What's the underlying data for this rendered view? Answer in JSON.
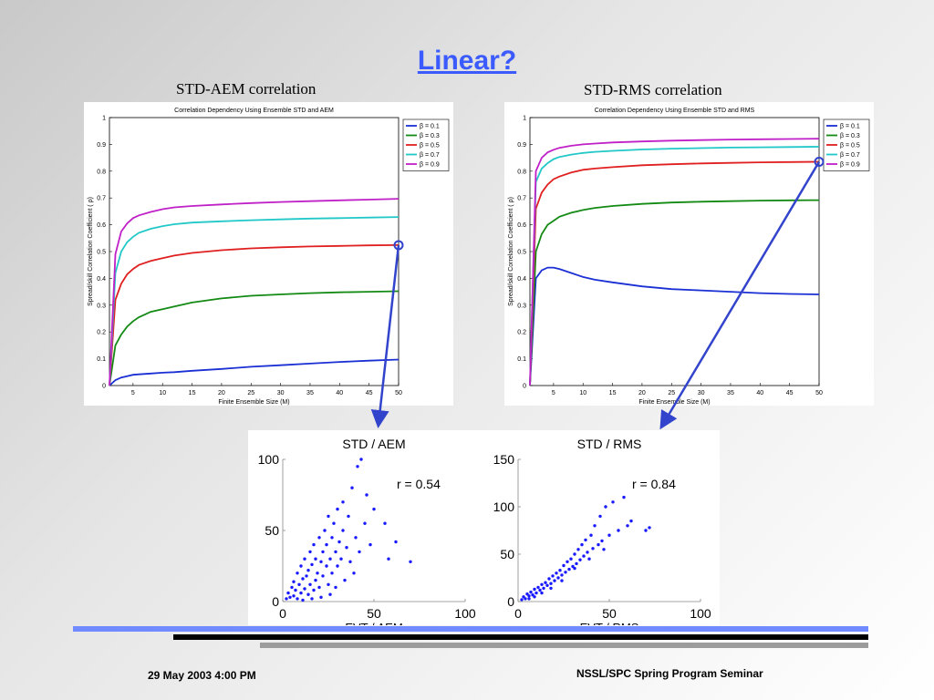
{
  "slide": {
    "title": "Linear?",
    "footer_left": "29 May 2003 4:00 PM",
    "footer_right": "NSSL/SPC Spring Program Seminar",
    "colors": {
      "title": "#3b5bff",
      "accent_bar": "#6f8bff",
      "arrow": "#3344cc"
    }
  },
  "captions": {
    "left": "STD-AEM correlation",
    "right": "STD-RMS correlation"
  },
  "chart_data": [
    {
      "type": "line",
      "id": "aem",
      "title": "Correlation Dependency Using Ensemble STD and AEM",
      "xlabel": "Finite Ensemble Size (M)",
      "ylabel": "Spread/skill Correlation Coefficient ( ρ)",
      "xlim": [
        1,
        50
      ],
      "ylim": [
        0,
        1
      ],
      "xticks": [
        5,
        10,
        15,
        20,
        25,
        30,
        35,
        40,
        45,
        50
      ],
      "yticks": [
        0,
        0.1,
        0.2,
        0.3,
        0.4,
        0.5,
        0.6,
        0.7,
        0.8,
        0.9,
        1
      ],
      "legend_position": "top-right",
      "x": [
        1,
        2,
        3,
        4,
        5,
        6,
        8,
        10,
        12,
        15,
        20,
        25,
        30,
        35,
        40,
        45,
        50
      ],
      "series": [
        {
          "name": "β = 0.1",
          "color": "#1a2fd4",
          "values": [
            0.0,
            0.02,
            0.03,
            0.035,
            0.04,
            0.042,
            0.045,
            0.048,
            0.05,
            0.055,
            0.062,
            0.07,
            0.076,
            0.082,
            0.088,
            0.093,
            0.097
          ]
        },
        {
          "name": "β = 0.3",
          "color": "#138a13",
          "values": [
            0.0,
            0.15,
            0.19,
            0.22,
            0.24,
            0.255,
            0.275,
            0.285,
            0.295,
            0.31,
            0.325,
            0.335,
            0.34,
            0.345,
            0.348,
            0.35,
            0.352
          ]
        },
        {
          "name": "β = 0.5",
          "color": "#e02020",
          "values": [
            0.0,
            0.32,
            0.38,
            0.415,
            0.435,
            0.45,
            0.465,
            0.475,
            0.485,
            0.495,
            0.505,
            0.512,
            0.516,
            0.519,
            0.521,
            0.523,
            0.524
          ]
        },
        {
          "name": "β = 0.7",
          "color": "#22c8c8",
          "values": [
            0.0,
            0.42,
            0.5,
            0.535,
            0.555,
            0.57,
            0.585,
            0.595,
            0.602,
            0.608,
            0.613,
            0.617,
            0.62,
            0.623,
            0.625,
            0.627,
            0.629
          ]
        },
        {
          "name": "β = 0.9",
          "color": "#c020c8",
          "values": [
            0.0,
            0.49,
            0.575,
            0.605,
            0.625,
            0.635,
            0.648,
            0.658,
            0.665,
            0.67,
            0.676,
            0.681,
            0.685,
            0.688,
            0.691,
            0.694,
            0.697
          ]
        }
      ]
    },
    {
      "type": "line",
      "id": "rms",
      "title": "Correlation Dependency Using Ensemble STD and RMS",
      "xlabel": "Finite Ensemble Size (M)",
      "ylabel": "Spread/skill Correlation Coefficient ( ρ)",
      "xlim": [
        1,
        50
      ],
      "ylim": [
        0,
        1
      ],
      "xticks": [
        5,
        10,
        15,
        20,
        25,
        30,
        35,
        40,
        45,
        50
      ],
      "yticks": [
        0,
        0.1,
        0.2,
        0.3,
        0.4,
        0.5,
        0.6,
        0.7,
        0.8,
        0.9,
        1
      ],
      "legend_position": "top-right",
      "x": [
        1,
        2,
        3,
        4,
        5,
        6,
        8,
        10,
        12,
        15,
        20,
        25,
        30,
        35,
        40,
        45,
        50
      ],
      "series": [
        {
          "name": "β = 0.1",
          "color": "#1a2fd4",
          "values": [
            0.0,
            0.4,
            0.43,
            0.44,
            0.44,
            0.435,
            0.42,
            0.405,
            0.395,
            0.385,
            0.37,
            0.36,
            0.355,
            0.35,
            0.345,
            0.342,
            0.34
          ]
        },
        {
          "name": "β = 0.3",
          "color": "#138a13",
          "values": [
            0.0,
            0.5,
            0.565,
            0.6,
            0.615,
            0.63,
            0.645,
            0.655,
            0.663,
            0.67,
            0.678,
            0.683,
            0.686,
            0.688,
            0.69,
            0.691,
            0.692
          ]
        },
        {
          "name": "β = 0.5",
          "color": "#e02020",
          "values": [
            0.0,
            0.66,
            0.72,
            0.75,
            0.77,
            0.78,
            0.795,
            0.805,
            0.81,
            0.815,
            0.822,
            0.826,
            0.829,
            0.831,
            0.833,
            0.834,
            0.835
          ]
        },
        {
          "name": "β = 0.7",
          "color": "#22c8c8",
          "values": [
            0.0,
            0.76,
            0.81,
            0.83,
            0.845,
            0.853,
            0.862,
            0.868,
            0.872,
            0.876,
            0.881,
            0.884,
            0.886,
            0.888,
            0.889,
            0.89,
            0.891
          ]
        },
        {
          "name": "β = 0.9",
          "color": "#c020c8",
          "values": [
            0.0,
            0.8,
            0.85,
            0.87,
            0.88,
            0.887,
            0.895,
            0.9,
            0.903,
            0.907,
            0.911,
            0.914,
            0.916,
            0.918,
            0.919,
            0.92,
            0.921
          ]
        }
      ],
      "highlight": {
        "series": "β = 0.5",
        "x": 50,
        "y": 0.835
      }
    },
    {
      "type": "scatter",
      "id": "std-aem",
      "title": "STD / AEM",
      "xlabel": "EVT / AEM",
      "ylabel": "",
      "xlim": [
        0,
        100
      ],
      "ylim": [
        0,
        100
      ],
      "xticks": [
        0,
        50,
        100
      ],
      "yticks": [
        0,
        50,
        100
      ],
      "color": "#1a1aff",
      "annotation": "r = 0.54",
      "points": [
        [
          2,
          2
        ],
        [
          3,
          6
        ],
        [
          4,
          3
        ],
        [
          5,
          10
        ],
        [
          6,
          4
        ],
        [
          6,
          14
        ],
        [
          7,
          8
        ],
        [
          8,
          20
        ],
        [
          8,
          2
        ],
        [
          9,
          12
        ],
        [
          10,
          6
        ],
        [
          10,
          25
        ],
        [
          11,
          16
        ],
        [
          12,
          9
        ],
        [
          12,
          30
        ],
        [
          13,
          18
        ],
        [
          14,
          5
        ],
        [
          14,
          22
        ],
        [
          15,
          12
        ],
        [
          15,
          35
        ],
        [
          16,
          26
        ],
        [
          17,
          8
        ],
        [
          17,
          40
        ],
        [
          18,
          15
        ],
        [
          18,
          30
        ],
        [
          19,
          20
        ],
        [
          20,
          45
        ],
        [
          20,
          10
        ],
        [
          21,
          28
        ],
        [
          22,
          35
        ],
        [
          22,
          18
        ],
        [
          23,
          50
        ],
        [
          24,
          25
        ],
        [
          24,
          40
        ],
        [
          25,
          12
        ],
        [
          25,
          60
        ],
        [
          26,
          30
        ],
        [
          27,
          45
        ],
        [
          27,
          20
        ],
        [
          28,
          55
        ],
        [
          29,
          35
        ],
        [
          30,
          25
        ],
        [
          30,
          65
        ],
        [
          31,
          42
        ],
        [
          32,
          30
        ],
        [
          33,
          50
        ],
        [
          33,
          70
        ],
        [
          35,
          38
        ],
        [
          36,
          60
        ],
        [
          37,
          28
        ],
        [
          38,
          80
        ],
        [
          40,
          45
        ],
        [
          41,
          95
        ],
        [
          43,
          100
        ],
        [
          45,
          55
        ],
        [
          48,
          40
        ],
        [
          50,
          65
        ],
        [
          56,
          55
        ],
        [
          58,
          30
        ],
        [
          70,
          28
        ],
        [
          62,
          42
        ],
        [
          46,
          75
        ],
        [
          42,
          35
        ],
        [
          39,
          20
        ],
        [
          34,
          15
        ],
        [
          29,
          10
        ],
        [
          26,
          5
        ],
        [
          21,
          3
        ],
        [
          16,
          2
        ],
        [
          11,
          1
        ]
      ],
      "arrow_from": {
        "chart": "aem",
        "series": "β = 0.5",
        "x": 50,
        "y": 0.524
      }
    },
    {
      "type": "scatter",
      "id": "std-rms",
      "title": "STD / RMS",
      "xlabel": "EVT / RMS",
      "ylabel": "",
      "xlim": [
        0,
        100
      ],
      "ylim": [
        0,
        150
      ],
      "xticks": [
        0,
        50,
        100
      ],
      "yticks": [
        0,
        50,
        100,
        150
      ],
      "color": "#1a1aff",
      "annotation": "r = 0.84",
      "points": [
        [
          2,
          2
        ],
        [
          3,
          5
        ],
        [
          4,
          3
        ],
        [
          5,
          8
        ],
        [
          6,
          6
        ],
        [
          7,
          10
        ],
        [
          8,
          7
        ],
        [
          9,
          13
        ],
        [
          10,
          9
        ],
        [
          11,
          15
        ],
        [
          12,
          12
        ],
        [
          13,
          18
        ],
        [
          14,
          14
        ],
        [
          15,
          20
        ],
        [
          16,
          17
        ],
        [
          17,
          24
        ],
        [
          18,
          19
        ],
        [
          19,
          27
        ],
        [
          20,
          22
        ],
        [
          21,
          30
        ],
        [
          22,
          25
        ],
        [
          23,
          33
        ],
        [
          24,
          28
        ],
        [
          25,
          38
        ],
        [
          26,
          31
        ],
        [
          27,
          42
        ],
        [
          28,
          34
        ],
        [
          29,
          45
        ],
        [
          30,
          37
        ],
        [
          31,
          50
        ],
        [
          32,
          40
        ],
        [
          33,
          55
        ],
        [
          34,
          44
        ],
        [
          35,
          60
        ],
        [
          36,
          48
        ],
        [
          37,
          65
        ],
        [
          38,
          52
        ],
        [
          40,
          70
        ],
        [
          41,
          56
        ],
        [
          42,
          80
        ],
        [
          44,
          60
        ],
        [
          45,
          90
        ],
        [
          46,
          64
        ],
        [
          48,
          100
        ],
        [
          50,
          70
        ],
        [
          52,
          105
        ],
        [
          55,
          75
        ],
        [
          58,
          110
        ],
        [
          60,
          80
        ],
        [
          62,
          85
        ],
        [
          70,
          75
        ],
        [
          72,
          78
        ],
        [
          47,
          55
        ],
        [
          39,
          45
        ],
        [
          31,
          35
        ],
        [
          24,
          22
        ],
        [
          18,
          14
        ],
        [
          13,
          9
        ],
        [
          9,
          5
        ],
        [
          6,
          3
        ]
      ],
      "arrow_from": {
        "chart": "rms",
        "series": "β = 0.5",
        "x": 50,
        "y": 0.835
      }
    }
  ]
}
